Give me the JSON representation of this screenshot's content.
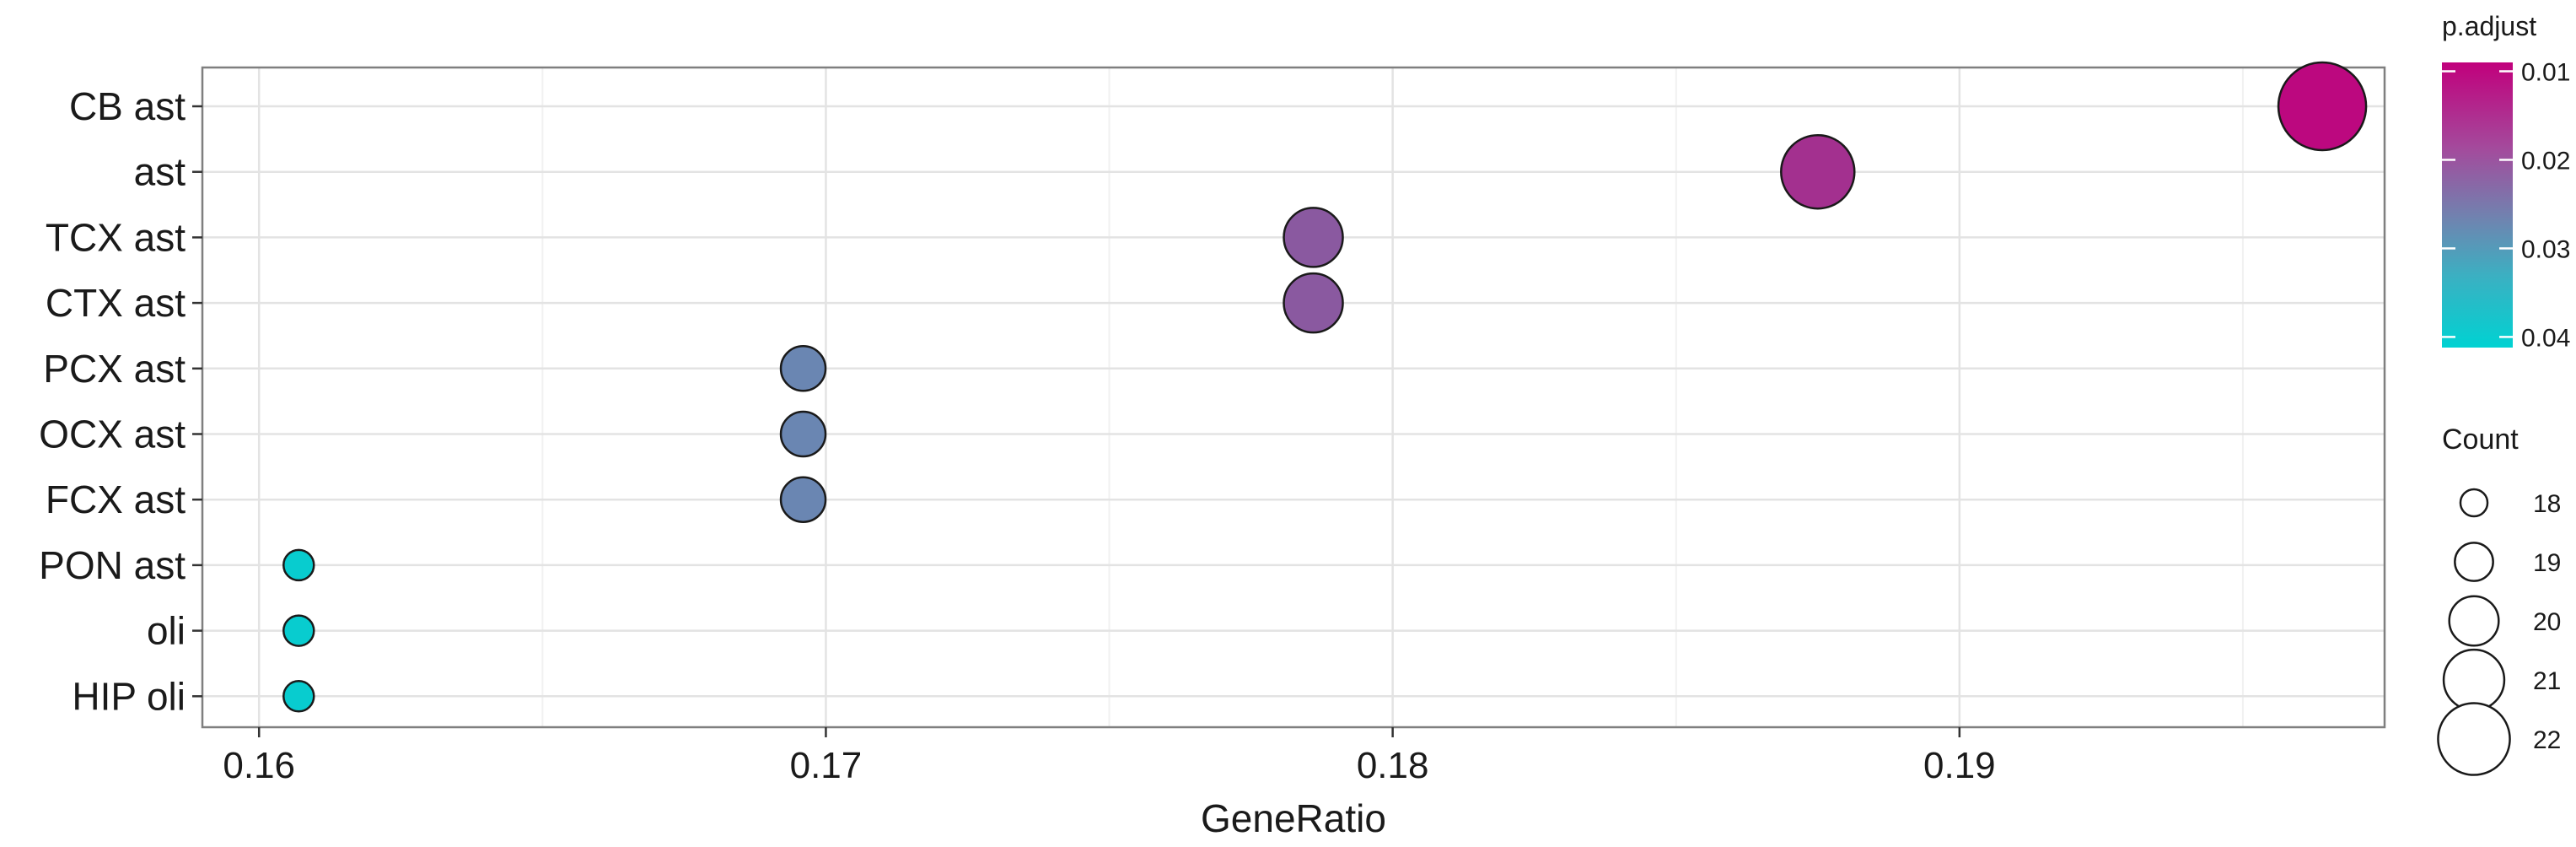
{
  "chart_data": {
    "type": "scatter",
    "xlabel": "GeneRatio",
    "ylabel": "",
    "xlim": [
      0.159,
      0.1975
    ],
    "x_ticks": [
      "0.16",
      "0.17",
      "0.18",
      "0.19"
    ],
    "x_tick_values": [
      0.16,
      0.17,
      0.18,
      0.19
    ],
    "x_minor_values": [
      0.165,
      0.175,
      0.185,
      0.195
    ],
    "grid": true,
    "categories": [
      "CB ast",
      "ast",
      "TCX ast",
      "CTX ast",
      "PCX ast",
      "OCX ast",
      "FCX ast",
      "PON ast",
      "oli",
      "HIP oli"
    ],
    "points": [
      {
        "label": "CB ast",
        "x": 0.1964,
        "count": 22,
        "p_adjust": 0.01
      },
      {
        "label": "ast",
        "x": 0.1875,
        "count": 21,
        "p_adjust": 0.015
      },
      {
        "label": "TCX ast",
        "x": 0.1786,
        "count": 20,
        "p_adjust": 0.02
      },
      {
        "label": "CTX ast",
        "x": 0.1786,
        "count": 20,
        "p_adjust": 0.02
      },
      {
        "label": "PCX ast",
        "x": 0.1696,
        "count": 19,
        "p_adjust": 0.026
      },
      {
        "label": "OCX ast",
        "x": 0.1696,
        "count": 19,
        "p_adjust": 0.026
      },
      {
        "label": "FCX ast",
        "x": 0.1696,
        "count": 19,
        "p_adjust": 0.026
      },
      {
        "label": "PON ast",
        "x": 0.1607,
        "count": 18,
        "p_adjust": 0.04
      },
      {
        "label": "oli",
        "x": 0.1607,
        "count": 18,
        "p_adjust": 0.04
      },
      {
        "label": "HIP oli",
        "x": 0.1607,
        "count": 18,
        "p_adjust": 0.04
      }
    ],
    "color_legend": {
      "title": "p.adjust",
      "tick_labels": [
        "0.01",
        "0.02",
        "0.03",
        "0.04"
      ],
      "tick_values": [
        0.01,
        0.02,
        0.03,
        0.04
      ],
      "range": [
        0.009,
        0.0412
      ],
      "color_low_p": "#c1007c",
      "color_high_p": "#00d2d2"
    },
    "size_legend": {
      "title": "Count",
      "values": [
        18,
        19,
        20,
        21,
        22
      ],
      "labels": [
        "18",
        "19",
        "20",
        "21",
        "22"
      ]
    },
    "colors": {
      "panel_border": "#7f7f7f",
      "grid_major": "#e3e3e3",
      "grid_minor": "#f1f1f1",
      "point_outline": "#1a1a1a"
    }
  }
}
